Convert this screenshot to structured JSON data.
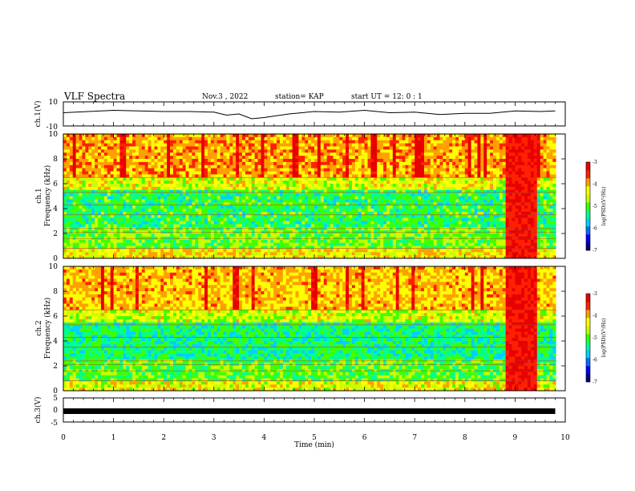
{
  "header": {
    "title": "VLF Spectra",
    "date": "Nov.3  , 2022",
    "station": "station= KAP",
    "start": "start  UT  =   12: 0  : 1"
  },
  "colors": {
    "spectrogram_scale": [
      "#00007a",
      "#0000ff",
      "#0070ff",
      "#00d0ff",
      "#00ff90",
      "#40ff00",
      "#c8ff00",
      "#ffff00",
      "#ffa000",
      "#ff2000",
      "#e80000"
    ],
    "trace": "#000000",
    "frame": "#000000"
  },
  "chart_data": [
    {
      "type": "line",
      "name": "ch.1 waveform",
      "ylabel": "ch.1(V)",
      "ylim": [
        -10,
        10
      ],
      "yticks": [
        "10",
        "-10"
      ],
      "xlim": [
        0,
        10
      ],
      "x": [
        0,
        0.5,
        1,
        1.5,
        2,
        2.5,
        3,
        3.25,
        3.5,
        3.75,
        4,
        4.5,
        5,
        5.5,
        6,
        6.5,
        7,
        7.5,
        8,
        8.5,
        9,
        9.5,
        9.8
      ],
      "y": [
        1,
        2,
        3,
        2.5,
        2,
        2,
        1.5,
        -1,
        0,
        -4,
        -3,
        0,
        2,
        1.5,
        3,
        1,
        1.5,
        -0.5,
        0.5,
        0.5,
        2.5,
        2,
        2.5
      ]
    },
    {
      "type": "heatmap",
      "name": "ch.1 spectrogram",
      "ylabel_top": "ch.1",
      "ylabel": "Frequency  (kHz)",
      "ylim": [
        0,
        10
      ],
      "yticks": [
        "0",
        "2",
        "4",
        "6",
        "8",
        "10"
      ],
      "xlim": [
        0,
        10
      ],
      "burst_interval_min": [
        8.8,
        9.45
      ],
      "colorbar": {
        "label": "log(PSD)(V²/Hz)",
        "range": [
          -7,
          -3
        ],
        "ticks": [
          "-3",
          "-4",
          "-5",
          "-6",
          "-7"
        ]
      }
    },
    {
      "type": "heatmap",
      "name": "ch.2 spectrogram",
      "ylabel_top": "ch.2",
      "ylabel": "Frequency  (kHz)",
      "ylim": [
        0,
        10
      ],
      "yticks": [
        "0",
        "2",
        "4",
        "6",
        "8",
        "10"
      ],
      "xlim": [
        0,
        10
      ],
      "burst_interval_min": [
        8.8,
        9.45
      ],
      "colorbar": {
        "label": "log(PSD)(V²/Hz)",
        "range": [
          -7,
          -3
        ],
        "ticks": [
          "-3",
          "-4",
          "-5",
          "-6",
          "-7"
        ]
      }
    },
    {
      "type": "line",
      "name": "ch.3 waveform",
      "ylabel": "ch.3(V)",
      "ylim": [
        -5,
        5
      ],
      "yticks": [
        "5",
        "0",
        "-5"
      ],
      "xlim": [
        0,
        10
      ],
      "x": [
        0,
        9.8
      ],
      "y": [
        -0.5,
        -0.5
      ]
    }
  ],
  "xaxis": {
    "label": "Time  (min)",
    "ticks": [
      "0",
      "1",
      "2",
      "3",
      "4",
      "5",
      "6",
      "7",
      "8",
      "9",
      "10"
    ]
  }
}
